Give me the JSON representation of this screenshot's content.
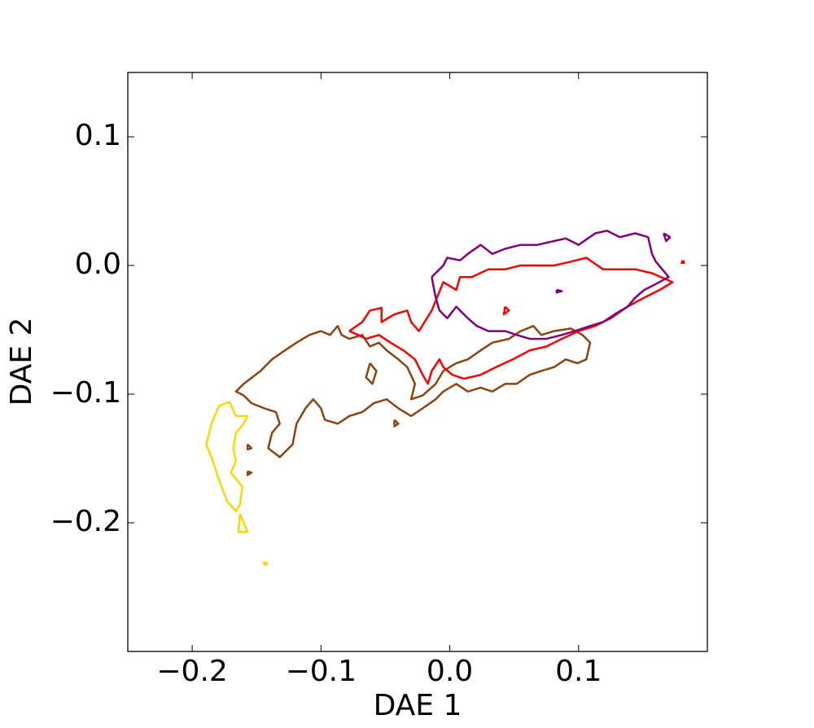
{
  "chart_data": {
    "type": "contour",
    "xlabel": "DAE 1",
    "ylabel": "DAE 2",
    "xlim": [
      -0.25,
      0.2
    ],
    "ylim": [
      -0.3,
      0.15
    ],
    "xticks": [
      {
        "value": -0.2,
        "label": "−0.2"
      },
      {
        "value": -0.1,
        "label": "−0.1"
      },
      {
        "value": 0,
        "label": "0.0"
      },
      0.1
    ],
    "yticks": [
      {
        "value": -0.2,
        "label": "−0.2"
      },
      {
        "value": -0.1,
        "label": "−0.1"
      },
      {
        "value": 0,
        "label": "0.0"
      },
      0.1
    ],
    "series": [
      {
        "color": "#ffd700",
        "x": [
          -0.179,
          -0.171,
          -0.166,
          -0.157,
          -0.16,
          -0.166,
          -0.168,
          -0.166,
          -0.17,
          -0.161,
          -0.163,
          -0.166,
          -0.173,
          -0.179,
          -0.184,
          -0.189,
          -0.185,
          -0.179,
          null,
          -0.163,
          -0.157,
          -0.164,
          -0.163,
          null,
          -0.145,
          -0.142,
          -0.143,
          -0.145
        ],
        "y": [
          -0.109,
          -0.106,
          -0.117,
          -0.117,
          -0.123,
          -0.13,
          -0.142,
          -0.152,
          -0.161,
          -0.172,
          -0.186,
          -0.191,
          -0.183,
          -0.167,
          -0.152,
          -0.139,
          -0.123,
          -0.109,
          null,
          -0.193,
          -0.207,
          -0.207,
          -0.193,
          null,
          -0.231,
          -0.231,
          -0.233,
          -0.231
        ]
      },
      {
        "color": "#8b4513",
        "x": [
          -0.16,
          -0.147,
          -0.138,
          -0.128,
          -0.119,
          -0.109,
          -0.1,
          -0.093,
          -0.087,
          -0.084,
          -0.078,
          -0.068,
          -0.062,
          -0.055,
          -0.049,
          -0.04,
          -0.033,
          -0.027,
          -0.03,
          -0.021,
          -0.011,
          -0.005,
          0.005,
          0.014,
          0.024,
          0.033,
          0.046,
          0.055,
          0.065,
          0.071,
          0.081,
          0.094,
          0.103,
          0.109,
          0.106,
          0.099,
          0.09,
          0.081,
          0.071,
          0.062,
          0.052,
          0.043,
          0.033,
          0.024,
          0.014,
          0.005,
          -0.005,
          -0.011,
          -0.021,
          -0.03,
          -0.04,
          -0.049,
          -0.059,
          -0.068,
          -0.078,
          -0.087,
          -0.097,
          -0.1,
          -0.106,
          -0.112,
          -0.119,
          -0.122,
          -0.132,
          -0.141,
          -0.138,
          -0.132,
          -0.135,
          -0.144,
          -0.154,
          -0.16,
          -0.166,
          -0.16,
          null,
          -0.062,
          -0.057,
          -0.06,
          -0.065,
          -0.062,
          null,
          -0.043,
          -0.04,
          -0.043,
          -0.043,
          null,
          -0.157,
          -0.154,
          -0.157,
          -0.157,
          null,
          -0.157,
          -0.154,
          -0.157,
          -0.157
        ],
        "y": [
          -0.092,
          -0.082,
          -0.073,
          -0.066,
          -0.06,
          -0.054,
          -0.051,
          -0.054,
          -0.047,
          -0.054,
          -0.057,
          -0.054,
          -0.063,
          -0.06,
          -0.066,
          -0.073,
          -0.079,
          -0.092,
          -0.104,
          -0.101,
          -0.092,
          -0.082,
          -0.076,
          -0.073,
          -0.066,
          -0.06,
          -0.057,
          -0.051,
          -0.047,
          -0.054,
          -0.051,
          -0.049,
          -0.054,
          -0.06,
          -0.073,
          -0.076,
          -0.073,
          -0.079,
          -0.082,
          -0.085,
          -0.092,
          -0.092,
          -0.098,
          -0.095,
          -0.098,
          -0.092,
          -0.098,
          -0.104,
          -0.111,
          -0.117,
          -0.111,
          -0.104,
          -0.107,
          -0.114,
          -0.117,
          -0.123,
          -0.12,
          -0.111,
          -0.104,
          -0.111,
          -0.123,
          -0.139,
          -0.149,
          -0.142,
          -0.13,
          -0.123,
          -0.114,
          -0.111,
          -0.107,
          -0.101,
          -0.098,
          -0.092,
          null,
          -0.076,
          -0.082,
          -0.092,
          -0.087,
          -0.076,
          null,
          -0.12,
          -0.123,
          -0.125,
          -0.12,
          null,
          -0.139,
          -0.142,
          -0.143,
          -0.139,
          null,
          -0.16,
          -0.161,
          -0.163,
          -0.16
        ]
      },
      {
        "color": "#ff0000",
        "x": [
          -0.078,
          -0.068,
          -0.062,
          -0.053,
          -0.053,
          -0.043,
          -0.033,
          -0.03,
          -0.024,
          -0.014,
          -0.005,
          0.005,
          0.008,
          0.017,
          0.03,
          0.043,
          0.055,
          0.068,
          0.081,
          0.094,
          0.106,
          0.119,
          0.132,
          0.144,
          0.157,
          0.173,
          0.163,
          0.151,
          0.138,
          0.125,
          0.113,
          0.1,
          0.087,
          0.075,
          0.062,
          0.049,
          0.036,
          0.024,
          0.011,
          0.002,
          -0.005,
          -0.008,
          -0.014,
          -0.017,
          -0.021,
          -0.027,
          -0.036,
          -0.046,
          -0.055,
          -0.065,
          -0.071,
          -0.078,
          null,
          0.181,
          0.182,
          0.18,
          0.181,
          null,
          0.043,
          0.046,
          0.042,
          0.043
        ],
        "y": [
          -0.051,
          -0.044,
          -0.035,
          -0.033,
          -0.044,
          -0.038,
          -0.035,
          -0.044,
          -0.051,
          -0.035,
          -0.013,
          -0.019,
          -0.009,
          -0.009,
          -0.003,
          -0.003,
          0,
          0,
          0,
          0.003,
          0.006,
          -0.003,
          -0.003,
          -0.003,
          -0.006,
          -0.013,
          -0.019,
          -0.025,
          -0.032,
          -0.041,
          -0.047,
          -0.051,
          -0.057,
          -0.063,
          -0.066,
          -0.073,
          -0.079,
          -0.085,
          -0.088,
          -0.085,
          -0.079,
          -0.073,
          -0.082,
          -0.092,
          -0.085,
          -0.073,
          -0.066,
          -0.06,
          -0.054,
          -0.057,
          -0.054,
          -0.051,
          null,
          0.004,
          0.002,
          0.002,
          0.004,
          null,
          -0.032,
          -0.035,
          -0.038,
          -0.032
        ]
      },
      {
        "color": "#800080",
        "x": [
          -0.014,
          -0.005,
          -0.002,
          0.008,
          0.014,
          0.024,
          0.033,
          0.043,
          0.055,
          0.068,
          0.081,
          0.09,
          0.1,
          0.113,
          0.122,
          0.132,
          0.144,
          0.154,
          0.157,
          0.16,
          0.17,
          0.157,
          0.151,
          0.144,
          0.138,
          0.128,
          0.119,
          0.109,
          0.097,
          0.087,
          0.075,
          0.062,
          0.052,
          0.043,
          0.03,
          0.021,
          0.014,
          0.005,
          -0.002,
          -0.008,
          -0.011,
          -0.014,
          null,
          0.166,
          0.171,
          0.168,
          0.166,
          null,
          0.083,
          0.087,
          0.083,
          0.083
        ],
        "y": [
          -0.009,
          0,
          0.006,
          0.004,
          0.009,
          0.016,
          0.009,
          0.013,
          0.016,
          0.016,
          0.019,
          0.021,
          0.016,
          0.025,
          0.027,
          0.022,
          0.025,
          0.022,
          0.009,
          0.003,
          -0.009,
          -0.016,
          -0.019,
          -0.025,
          -0.032,
          -0.038,
          -0.044,
          -0.047,
          -0.051,
          -0.054,
          -0.057,
          -0.057,
          -0.054,
          -0.051,
          -0.051,
          -0.047,
          -0.041,
          -0.032,
          -0.041,
          -0.035,
          -0.025,
          -0.009,
          null,
          0.025,
          0.022,
          0.019,
          0.025,
          null,
          -0.019,
          -0.02,
          -0.021,
          -0.019
        ]
      }
    ]
  }
}
